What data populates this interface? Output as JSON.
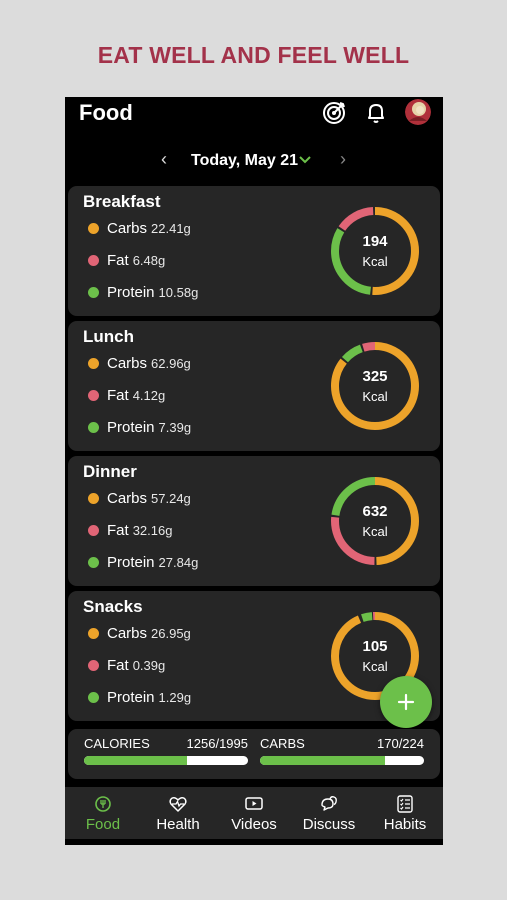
{
  "banner": {
    "headline": "EAT WELL AND FEEL WELL"
  },
  "header": {
    "title": "Food",
    "icons": [
      "target-icon",
      "bell-icon",
      "avatar"
    ]
  },
  "date_nav": {
    "prev": "‹",
    "label": "Today, May 21",
    "next": "›"
  },
  "colors": {
    "carbs": "#eda32a",
    "fat": "#e16576",
    "protein": "#6cc04a",
    "accent": "#6cc04a",
    "card": "#262626",
    "banner": "#a3324a"
  },
  "meals": [
    {
      "name": "Breakfast",
      "kcal": "194",
      "unit": "Kcal",
      "macros": [
        {
          "label": "Carbs",
          "value": "22.41g"
        },
        {
          "label": "Fat",
          "value": "6.48g"
        },
        {
          "label": "Protein",
          "value": "10.58g"
        }
      ]
    },
    {
      "name": "Lunch",
      "kcal": "325",
      "unit": "Kcal",
      "macros": [
        {
          "label": "Carbs",
          "value": "62.96g"
        },
        {
          "label": "Fat",
          "value": "4.12g"
        },
        {
          "label": "Protein",
          "value": "7.39g"
        }
      ]
    },
    {
      "name": "Dinner",
      "kcal": "632",
      "unit": "Kcal",
      "macros": [
        {
          "label": "Carbs",
          "value": "57.24g"
        },
        {
          "label": "Fat",
          "value": "32.16g"
        },
        {
          "label": "Protein",
          "value": "27.84g"
        }
      ]
    },
    {
      "name": "Snacks",
      "kcal": "105",
      "unit": "Kcal",
      "macros": [
        {
          "label": "Carbs",
          "value": "26.95g"
        },
        {
          "label": "Fat",
          "value": "0.39g"
        },
        {
          "label": "Protein",
          "value": "1.29g"
        }
      ]
    }
  ],
  "fab": {
    "label": "+"
  },
  "summary": {
    "calories": {
      "label": "CALORIES",
      "value": "1256/1995",
      "fraction": 0.63
    },
    "carbs": {
      "label": "CARBS",
      "value": "170/224",
      "fraction": 0.76
    }
  },
  "nav": [
    {
      "label": "Food",
      "icon": "food-icon",
      "active": true
    },
    {
      "label": "Health",
      "icon": "heart-pulse-icon",
      "active": false
    },
    {
      "label": "Videos",
      "icon": "video-icon",
      "active": false
    },
    {
      "label": "Discuss",
      "icon": "chat-icon",
      "active": false
    },
    {
      "label": "Habits",
      "icon": "checklist-icon",
      "active": false
    }
  ]
}
